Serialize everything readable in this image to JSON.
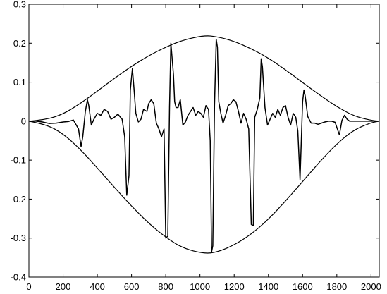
{
  "chart_data": {
    "type": "line",
    "title": "",
    "xlabel": "",
    "ylabel": "",
    "xlim": [
      0,
      2048
    ],
    "ylim": [
      -0.4,
      0.3
    ],
    "grid": false,
    "legend": "none",
    "x_ticks": [
      0,
      200,
      400,
      600,
      800,
      1000,
      1200,
      1400,
      1600,
      1800,
      2000
    ],
    "x_tick_labels": [
      "0",
      "200",
      "400",
      "600",
      "800",
      "1000",
      "1200",
      "1400",
      "1600",
      "1800",
      "2000"
    ],
    "y_ticks": [
      -0.4,
      -0.3,
      -0.2,
      -0.1,
      0,
      0.1,
      0.2,
      0.3
    ],
    "y_tick_labels": [
      "-0.4",
      "-0.3",
      "-0.2",
      "-0.1",
      "0",
      "0.1",
      "0.2",
      "0.3"
    ],
    "series": [
      {
        "role": "upper-envelope",
        "x": [
          0,
          100,
          200,
          300,
          400,
          500,
          600,
          700,
          800,
          900,
          1024,
          1100,
          1200,
          1300,
          1400,
          1500,
          1600,
          1700,
          1800,
          1900,
          2000,
          2048
        ],
        "y": [
          0,
          0.004,
          0.018,
          0.045,
          0.077,
          0.11,
          0.141,
          0.168,
          0.19,
          0.208,
          0.22,
          0.217,
          0.205,
          0.186,
          0.162,
          0.132,
          0.099,
          0.067,
          0.037,
          0.013,
          0.002,
          0
        ]
      },
      {
        "role": "lower-envelope",
        "x": [
          0,
          100,
          200,
          300,
          400,
          500,
          600,
          700,
          800,
          900,
          1024,
          1100,
          1200,
          1300,
          1400,
          1500,
          1600,
          1700,
          1800,
          1900,
          2000,
          2048
        ],
        "y": [
          0,
          -0.008,
          -0.032,
          -0.072,
          -0.12,
          -0.17,
          -0.218,
          -0.262,
          -0.298,
          -0.326,
          -0.34,
          -0.336,
          -0.318,
          -0.29,
          -0.252,
          -0.205,
          -0.155,
          -0.104,
          -0.058,
          -0.022,
          -0.004,
          0
        ]
      },
      {
        "role": "signal",
        "x": [
          0,
          40,
          80,
          120,
          160,
          200,
          230,
          260,
          290,
          305,
          315,
          330,
          342,
          350,
          365,
          380,
          400,
          420,
          440,
          460,
          480,
          500,
          520,
          545,
          560,
          572,
          585,
          593,
          605,
          615,
          625,
          640,
          655,
          670,
          690,
          700,
          715,
          730,
          745,
          760,
          775,
          790,
          800,
          812,
          822,
          830,
          845,
          852,
          860,
          872,
          885,
          900,
          915,
          930,
          945,
          960,
          975,
          990,
          1005,
          1020,
          1035,
          1050,
          1060,
          1068,
          1075,
          1085,
          1095,
          1102,
          1110,
          1122,
          1135,
          1150,
          1165,
          1180,
          1195,
          1210,
          1225,
          1240,
          1255,
          1270,
          1285,
          1300,
          1312,
          1320,
          1335,
          1350,
          1358,
          1365,
          1380,
          1395,
          1410,
          1425,
          1440,
          1455,
          1470,
          1485,
          1500,
          1515,
          1530,
          1545,
          1560,
          1572,
          1585,
          1600,
          1608,
          1615,
          1630,
          1650,
          1670,
          1690,
          1710,
          1730,
          1750,
          1770,
          1790,
          1815,
          1830,
          1845,
          1860,
          1875,
          1890,
          1910,
          1940,
          1970,
          2000,
          2030,
          2048
        ],
        "y": [
          0,
          0,
          -0.002,
          -0.006,
          -0.005,
          -0.002,
          -0.001,
          0.003,
          -0.02,
          -0.065,
          -0.04,
          0.025,
          0.055,
          0.04,
          -0.01,
          0.005,
          0.02,
          0.015,
          0.03,
          0.025,
          0.005,
          0.01,
          0.018,
          0.005,
          -0.04,
          -0.19,
          -0.14,
          0.08,
          0.135,
          0.08,
          0.02,
          -0.002,
          0.005,
          0.03,
          0.025,
          0.045,
          0.055,
          0.045,
          -0.005,
          -0.02,
          -0.04,
          -0.02,
          -0.3,
          -0.295,
          0.035,
          0.2,
          0.12,
          0.05,
          0.035,
          0.035,
          0.055,
          -0.01,
          -0.002,
          0.015,
          0.025,
          0.035,
          0.015,
          0.025,
          0.02,
          0.01,
          0.04,
          0.03,
          -0.05,
          -0.335,
          -0.32,
          0.04,
          0.21,
          0.19,
          0.05,
          0.02,
          -0.005,
          0.015,
          0.04,
          0.045,
          0.055,
          0.05,
          0.025,
          -0.005,
          0.02,
          0.005,
          -0.02,
          -0.265,
          -0.268,
          0.01,
          0.03,
          0.06,
          0.16,
          0.14,
          0.035,
          -0.01,
          0.005,
          0.02,
          0.01,
          0.03,
          0.015,
          0.035,
          0.04,
          0.01,
          -0.01,
          0.02,
          0.01,
          -0.025,
          -0.15,
          0.05,
          0.08,
          0.065,
          0.012,
          -0.005,
          -0.005,
          -0.008,
          -0.005,
          -0.002,
          0,
          0,
          -0.003,
          -0.035,
          0.002,
          0.015,
          0.005,
          0,
          0,
          0,
          0,
          0,
          0,
          0,
          0
        ]
      }
    ]
  }
}
